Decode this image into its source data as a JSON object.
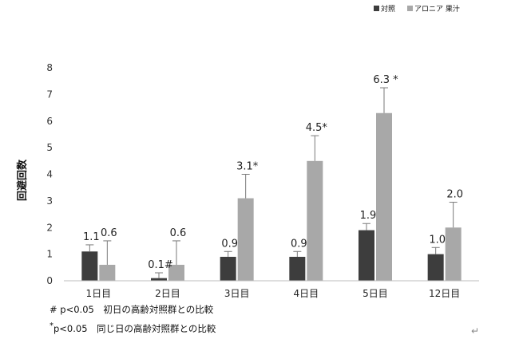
{
  "chart_data": {
    "type": "bar",
    "ylabel": "回避回数",
    "ylim": [
      0,
      8
    ],
    "yticks": [
      0,
      1,
      2,
      3,
      4,
      5,
      6,
      7,
      8
    ],
    "grid": false,
    "legend_position": "top-right",
    "categories": [
      "1日目",
      "2日目",
      "3日目",
      "4日目",
      "5日目",
      "12日目"
    ],
    "series": [
      {
        "name": "対照",
        "color": "#3d3d3d",
        "values": [
          1.1,
          0.1,
          0.9,
          0.9,
          1.9,
          1.0
        ],
        "errors": [
          0.25,
          0.2,
          0.2,
          0.2,
          0.25,
          0.25
        ],
        "labels": [
          "1.1",
          "0.1#",
          "0.9",
          "0.9",
          "1.9",
          "1.0"
        ]
      },
      {
        "name": "アロニア 果汁",
        "color": "#a8a8a8",
        "values": [
          0.6,
          0.6,
          3.1,
          4.5,
          6.3,
          2.0
        ],
        "errors": [
          0.9,
          0.9,
          0.9,
          0.95,
          0.95,
          0.95
        ],
        "labels": [
          "0.6",
          "0.6",
          "3.1*",
          "4.5*",
          "6.3 *",
          "2.0"
        ]
      }
    ]
  },
  "notes": {
    "hash_mark": "#",
    "hash_text": "p<0.05　初日の高齢対照群との比較",
    "star_mark": "*",
    "star_text": "p<0.05　同じ日の高齢対照群との比較",
    "return_mark": "↵"
  }
}
